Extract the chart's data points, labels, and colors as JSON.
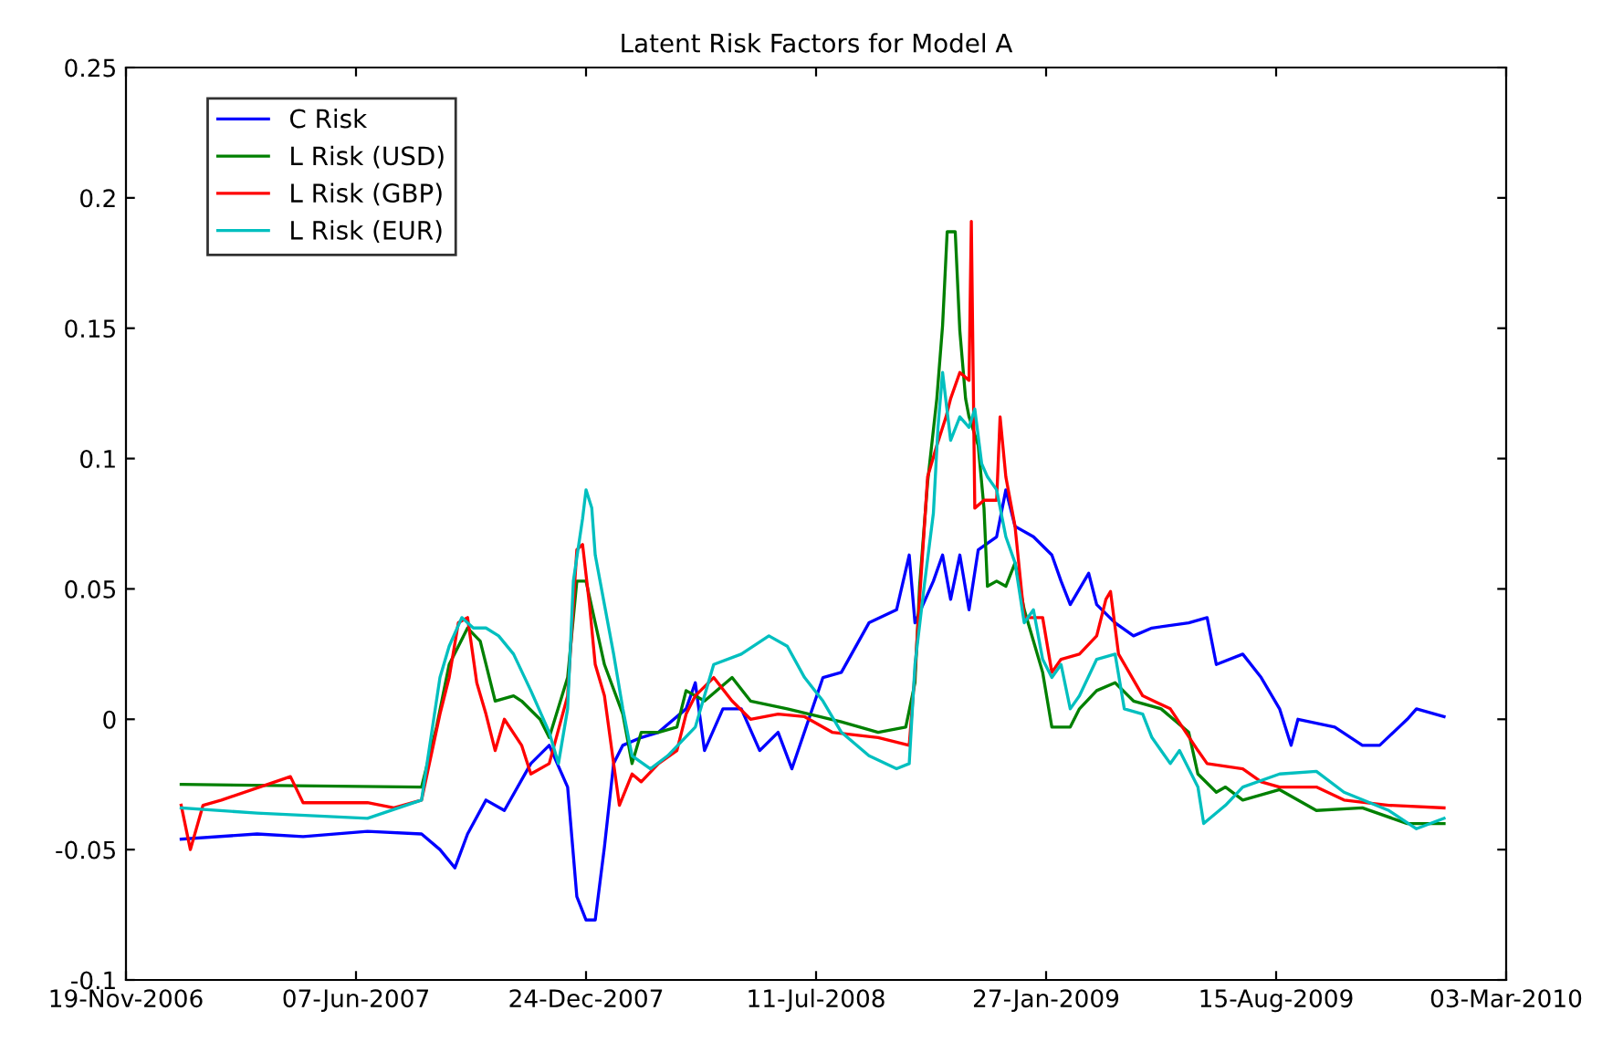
{
  "chart_data": {
    "type": "line",
    "title": "Latent Risk Factors for Model A",
    "legend": "top left",
    "grid": false,
    "xlim": [
      "2006-11-19",
      "2010-03-03"
    ],
    "xticks": [
      {
        "value": "2006-11-19",
        "label": "19-Nov-2006"
      },
      {
        "value": "2007-06-07",
        "label": "07-Jun-2007"
      },
      {
        "value": "2007-12-24",
        "label": "24-Dec-2007"
      },
      {
        "value": "2008-07-11",
        "label": "11-Jul-2008"
      },
      {
        "value": "2009-01-27",
        "label": "27-Jan-2009"
      },
      {
        "value": "2009-08-15",
        "label": "15-Aug-2009"
      },
      {
        "value": "2010-03-03",
        "label": "03-Mar-2010"
      }
    ],
    "ylim": [
      -0.1,
      0.25
    ],
    "yticks": [
      -0.1,
      -0.05,
      0,
      0.05,
      0.1,
      0.15,
      0.2,
      0.25
    ],
    "series": [
      {
        "name": "C Risk",
        "color": "#0000ff",
        "x": [
          "2007-01-06",
          "2007-03-13",
          "2007-04-22",
          "2007-06-17",
          "2007-08-03",
          "2007-08-19",
          "2007-09-01",
          "2007-09-12",
          "2007-09-28",
          "2007-10-14",
          "2007-11-06",
          "2007-11-22",
          "2007-12-08",
          "2007-12-16",
          "2007-12-24",
          "2008-01-01",
          "2008-01-09",
          "2008-01-17",
          "2008-01-25",
          "2008-02-10",
          "2008-02-25",
          "2008-03-20",
          "2008-03-28",
          "2008-04-05",
          "2008-04-21",
          "2008-05-07",
          "2008-05-23",
          "2008-06-08",
          "2008-06-20",
          "2008-07-17",
          "2008-08-02",
          "2008-08-26",
          "2008-09-19",
          "2008-09-30",
          "2008-10-05",
          "2008-10-21",
          "2008-10-29",
          "2008-11-05",
          "2008-11-13",
          "2008-11-21",
          "2008-11-29",
          "2008-12-15",
          "2008-12-23",
          "2008-12-31",
          "2009-01-16",
          "2009-02-01",
          "2009-02-09",
          "2009-02-17",
          "2009-03-05",
          "2009-03-12",
          "2009-03-28",
          "2009-04-13",
          "2009-04-29",
          "2009-05-31",
          "2009-06-16",
          "2009-06-24",
          "2009-07-17",
          "2009-08-02",
          "2009-08-18",
          "2009-08-28",
          "2009-09-03",
          "2009-10-05",
          "2009-10-29",
          "2009-11-13",
          "2009-12-07",
          "2009-12-15",
          "2010-01-08"
        ],
        "values": [
          -0.046,
          -0.044,
          -0.045,
          -0.043,
          -0.044,
          -0.05,
          -0.057,
          -0.044,
          -0.031,
          -0.035,
          -0.017,
          -0.01,
          -0.026,
          -0.068,
          -0.077,
          -0.077,
          -0.049,
          -0.017,
          -0.01,
          -0.007,
          -0.005,
          0.004,
          0.014,
          -0.012,
          0.004,
          0.004,
          -0.012,
          -0.005,
          -0.019,
          0.016,
          0.018,
          0.037,
          0.042,
          0.063,
          0.037,
          0.053,
          0.063,
          0.046,
          0.063,
          0.042,
          0.065,
          0.07,
          0.088,
          0.074,
          0.07,
          0.063,
          0.053,
          0.044,
          0.056,
          0.044,
          0.037,
          0.032,
          0.035,
          0.037,
          0.039,
          0.021,
          0.025,
          0.016,
          0.004,
          -0.01,
          0,
          -0.003,
          -0.01,
          -0.01,
          0,
          0.004,
          0.001
        ]
      },
      {
        "name": "L Risk (USD)",
        "color": "#008000",
        "x": [
          "2007-01-06",
          "2007-08-03",
          "2007-08-16",
          "2007-08-27",
          "2007-09-12",
          "2007-09-23",
          "2007-10-06",
          "2007-10-22",
          "2007-10-29",
          "2007-11-14",
          "2007-11-22",
          "2007-12-08",
          "2007-12-16",
          "2007-12-24",
          "2008-01-01",
          "2008-01-09",
          "2008-01-25",
          "2008-02-02",
          "2008-02-10",
          "2008-02-25",
          "2008-03-12",
          "2008-03-20",
          "2008-04-05",
          "2008-04-29",
          "2008-05-15",
          "2008-06-16",
          "2008-08-02",
          "2008-09-03",
          "2008-09-27",
          "2008-10-05",
          "2008-10-09",
          "2008-10-16",
          "2008-10-24",
          "2008-10-29",
          "2008-11-02",
          "2008-11-09",
          "2008-11-13",
          "2008-11-18",
          "2008-11-21",
          "2008-11-29",
          "2008-12-04",
          "2008-12-07",
          "2008-12-15",
          "2008-12-23",
          "2008-12-31",
          "2009-01-08",
          "2009-01-16",
          "2009-01-24",
          "2009-02-01",
          "2009-02-17",
          "2009-02-25",
          "2009-03-12",
          "2009-03-28",
          "2009-04-13",
          "2009-05-07",
          "2009-05-31",
          "2009-06-08",
          "2009-06-24",
          "2009-07-02",
          "2009-07-17",
          "2009-08-18",
          "2009-09-19",
          "2009-10-29",
          "2009-12-07",
          "2010-01-08"
        ],
        "values": [
          -0.025,
          -0.026,
          -0.003,
          0.021,
          0.035,
          0.03,
          0.007,
          0.009,
          0.007,
          0,
          -0.007,
          0.016,
          0.053,
          0.053,
          0.037,
          0.021,
          0.002,
          -0.017,
          -0.005,
          -0.005,
          -0.003,
          0.011,
          0.007,
          0.016,
          0.007,
          0.004,
          -0.001,
          -0.005,
          -0.003,
          0.014,
          0.051,
          0.091,
          0.123,
          0.151,
          0.187,
          0.187,
          0.149,
          0.123,
          0.116,
          0.105,
          0.081,
          0.051,
          0.053,
          0.051,
          0.06,
          0.042,
          0.03,
          0.018,
          -0.003,
          -0.003,
          0.004,
          0.011,
          0.014,
          0.007,
          0.004,
          -0.005,
          -0.021,
          -0.028,
          -0.026,
          -0.031,
          -0.027,
          -0.035,
          -0.034,
          -0.04,
          -0.04
        ]
      },
      {
        "name": "L Risk (GBP)",
        "color": "#ff0000",
        "x": [
          "2007-01-06",
          "2007-01-14",
          "2007-01-25",
          "2007-02-10",
          "2007-04-11",
          "2007-04-22",
          "2007-06-17",
          "2007-07-10",
          "2007-08-03",
          "2007-08-19",
          "2007-08-27",
          "2007-09-04",
          "2007-09-12",
          "2007-09-20",
          "2007-09-28",
          "2007-10-06",
          "2007-10-14",
          "2007-10-29",
          "2007-11-06",
          "2007-11-22",
          "2007-12-08",
          "2007-12-16",
          "2007-12-21",
          "2007-12-27",
          "2008-01-01",
          "2008-01-09",
          "2008-01-17",
          "2008-01-22",
          "2008-02-02",
          "2008-02-10",
          "2008-02-25",
          "2008-03-12",
          "2008-03-20",
          "2008-03-28",
          "2008-04-13",
          "2008-04-29",
          "2008-05-15",
          "2008-06-08",
          "2008-07-01",
          "2008-07-25",
          "2008-09-03",
          "2008-09-30",
          "2008-10-05",
          "2008-10-09",
          "2008-10-16",
          "2008-10-24",
          "2008-11-01",
          "2008-11-05",
          "2008-11-13",
          "2008-11-21",
          "2008-11-23",
          "2008-11-26",
          "2008-12-04",
          "2008-12-15",
          "2008-12-18",
          "2008-12-23",
          "2008-12-31",
          "2009-01-08",
          "2009-01-24",
          "2009-02-01",
          "2009-02-09",
          "2009-02-25",
          "2009-03-12",
          "2009-03-20",
          "2009-03-24",
          "2009-03-31",
          "2009-04-21",
          "2009-05-15",
          "2009-06-08",
          "2009-06-16",
          "2009-07-17",
          "2009-08-02",
          "2009-08-18",
          "2009-09-19",
          "2009-10-13",
          "2009-11-21",
          "2010-01-08"
        ],
        "values": [
          -0.033,
          -0.05,
          -0.033,
          -0.031,
          -0.022,
          -0.032,
          -0.032,
          -0.034,
          -0.031,
          0.002,
          0.016,
          0.037,
          0.039,
          0.014,
          0.002,
          -0.012,
          0,
          -0.01,
          -0.021,
          -0.017,
          0.009,
          0.065,
          0.067,
          0.044,
          0.021,
          0.009,
          -0.017,
          -0.033,
          -0.021,
          -0.024,
          -0.017,
          -0.012,
          0.002,
          0.009,
          0.016,
          0.007,
          0,
          0.002,
          0.001,
          -0.005,
          -0.007,
          -0.01,
          0.018,
          0.046,
          0.093,
          0.105,
          0.116,
          0.123,
          0.133,
          0.13,
          0.191,
          0.081,
          0.084,
          0.084,
          0.116,
          0.093,
          0.074,
          0.039,
          0.039,
          0.018,
          0.023,
          0.025,
          0.032,
          0.046,
          0.049,
          0.025,
          0.009,
          0.004,
          -0.012,
          -0.017,
          -0.019,
          -0.024,
          -0.026,
          -0.026,
          -0.031,
          -0.033,
          -0.034
        ]
      },
      {
        "name": "L Risk (EUR)",
        "color": "#00bfbf",
        "x": [
          "2007-01-06",
          "2007-03-13",
          "2007-06-17",
          "2007-08-03",
          "2007-08-19",
          "2007-08-27",
          "2007-09-07",
          "2007-09-17",
          "2007-09-28",
          "2007-10-09",
          "2007-10-22",
          "2007-11-06",
          "2007-11-22",
          "2007-11-30",
          "2007-12-08",
          "2007-12-13",
          "2007-12-21",
          "2007-12-24",
          "2007-12-29",
          "2008-01-01",
          "2008-01-09",
          "2008-01-17",
          "2008-01-25",
          "2008-02-02",
          "2008-02-18",
          "2008-03-04",
          "2008-03-28",
          "2008-04-13",
          "2008-05-07",
          "2008-05-31",
          "2008-06-16",
          "2008-07-01",
          "2008-07-17",
          "2008-08-02",
          "2008-08-26",
          "2008-09-19",
          "2008-09-30",
          "2008-10-05",
          "2008-10-13",
          "2008-10-21",
          "2008-10-25",
          "2008-10-29",
          "2008-11-05",
          "2008-11-13",
          "2008-11-21",
          "2008-11-26",
          "2008-12-02",
          "2008-12-07",
          "2008-12-15",
          "2008-12-23",
          "2008-12-31",
          "2009-01-08",
          "2009-01-16",
          "2009-01-24",
          "2009-02-01",
          "2009-02-09",
          "2009-02-17",
          "2009-02-25",
          "2009-03-12",
          "2009-03-28",
          "2009-04-05",
          "2009-04-21",
          "2009-04-29",
          "2009-05-15",
          "2009-05-23",
          "2009-06-08",
          "2009-06-13",
          "2009-07-02",
          "2009-07-17",
          "2009-08-18",
          "2009-09-19",
          "2009-10-13",
          "2009-11-21",
          "2009-12-15",
          "2010-01-08"
        ],
        "values": [
          -0.034,
          -0.036,
          -0.038,
          -0.031,
          0.016,
          0.028,
          0.039,
          0.035,
          0.035,
          0.032,
          0.025,
          0.011,
          -0.005,
          -0.017,
          0.004,
          0.053,
          0.077,
          0.088,
          0.081,
          0.063,
          0.044,
          0.025,
          0.004,
          -0.014,
          -0.019,
          -0.014,
          -0.003,
          0.021,
          0.025,
          0.032,
          0.028,
          0.016,
          0.007,
          -0.005,
          -0.014,
          -0.019,
          -0.017,
          0.021,
          0.051,
          0.079,
          0.112,
          0.133,
          0.107,
          0.116,
          0.112,
          0.119,
          0.098,
          0.093,
          0.088,
          0.07,
          0.06,
          0.037,
          0.042,
          0.023,
          0.016,
          0.021,
          0.004,
          0.009,
          0.023,
          0.025,
          0.004,
          0.002,
          -0.007,
          -0.017,
          -0.012,
          -0.026,
          -0.04,
          -0.033,
          -0.026,
          -0.021,
          -0.02,
          -0.028,
          -0.035,
          -0.042,
          -0.038
        ]
      }
    ]
  }
}
